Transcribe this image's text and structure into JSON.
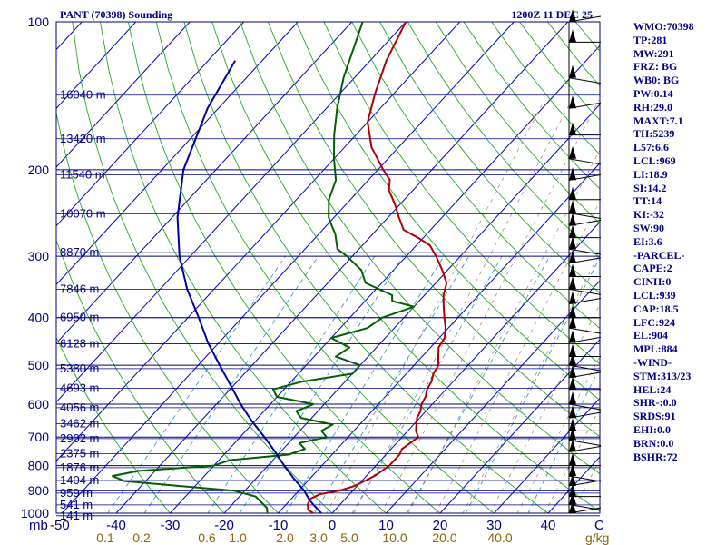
{
  "header": {
    "station": "PANT (70398) Sounding",
    "time": "1200Z 11 DEC 25"
  },
  "chart_data": {
    "type": "line",
    "title": "PANT (70398) Sounding",
    "subtitle": "1200Z 11 DEC 25",
    "xlabel": "",
    "ylabel": "",
    "xlim": [
      -50,
      50
    ],
    "ylim": [
      1000,
      100
    ],
    "y_scale": "log",
    "pressure_levels": [
      100,
      200,
      300,
      400,
      500,
      600,
      700,
      800,
      900,
      1000
    ],
    "pressure_labels": [
      "100",
      "200",
      "300",
      "400",
      "500",
      "600",
      "700",
      "800",
      "900",
      "1000"
    ],
    "temperature_ticks": [
      -40,
      -30,
      -20,
      -10,
      0,
      10,
      20,
      30,
      40
    ],
    "temperature_tick_labels": [
      "-40",
      "-30",
      "-20",
      "-10",
      "0",
      "10",
      "20",
      "30",
      "40"
    ],
    "corner_label": "mb",
    "left_edge_temp_label": "-50",
    "end_label": "C",
    "mixing_ratio_units": "g/kg",
    "mixing_ratio_labels": [
      {
        "text": "0.1",
        "value": 0.1
      },
      {
        "text": "0.2",
        "value": 0.2
      },
      {
        "text": "0.6",
        "value": 0.6
      },
      {
        "text": "1.0",
        "value": 1.0
      },
      {
        "text": "2.0",
        "value": 2.0
      },
      {
        "text": "3.0",
        "value": 3.0
      },
      {
        "text": "5.0",
        "value": 5.0
      },
      {
        "text": "10.0",
        "value": 10.0
      },
      {
        "text": "20.0",
        "value": 20.0
      },
      {
        "text": "40.0",
        "value": 40.0
      }
    ],
    "height_labels": [
      {
        "p": 141,
        "text": "16040 m"
      },
      {
        "p": 173,
        "text": "13420 m"
      },
      {
        "p": 205,
        "text": "11540 m"
      },
      {
        "p": 246,
        "text": "10070 m"
      },
      {
        "p": 295,
        "text": "8870 m"
      },
      {
        "p": 350,
        "text": "7846 m"
      },
      {
        "p": 400,
        "text": "6950 m"
      },
      {
        "p": 452,
        "text": "6128 m"
      },
      {
        "p": 508,
        "text": "5380 m"
      },
      {
        "p": 557,
        "text": "4693 m"
      },
      {
        "p": 610,
        "text": "4056 m"
      },
      {
        "p": 658,
        "text": "3462 m"
      },
      {
        "p": 705,
        "text": "2902 m"
      },
      {
        "p": 757,
        "text": "2375 m"
      },
      {
        "p": 808,
        "text": "1876 m"
      },
      {
        "p": 858,
        "text": "1404 m"
      },
      {
        "p": 910,
        "text": "959 m"
      },
      {
        "p": 962,
        "text": "541 m"
      },
      {
        "p": 1012,
        "text": "141 m"
      }
    ],
    "series": [
      {
        "name": "Temperature",
        "color": "#b00000",
        "points": [
          [
            1000,
            -3.5
          ],
          [
            985,
            -5.0
          ],
          [
            960,
            -6.0
          ],
          [
            935,
            -6.5
          ],
          [
            925,
            -6.0
          ],
          [
            915,
            -5.5
          ],
          [
            900,
            -2.5
          ],
          [
            880,
            -0.5
          ],
          [
            860,
            0.5
          ],
          [
            840,
            1.5
          ],
          [
            820,
            2.0
          ],
          [
            800,
            2.5
          ],
          [
            780,
            2.5
          ],
          [
            760,
            2.5
          ],
          [
            740,
            2.0
          ],
          [
            720,
            2.5
          ],
          [
            700,
            3.0
          ],
          [
            680,
            1.5
          ],
          [
            660,
            0.5
          ],
          [
            640,
            -0.5
          ],
          [
            620,
            -1.0
          ],
          [
            600,
            -2.0
          ],
          [
            580,
            -2.5
          ],
          [
            560,
            -3.5
          ],
          [
            540,
            -4.0
          ],
          [
            520,
            -5.0
          ],
          [
            500,
            -5.5
          ],
          [
            480,
            -7.0
          ],
          [
            460,
            -8.5
          ],
          [
            440,
            -9.0
          ],
          [
            420,
            -10.5
          ],
          [
            400,
            -12.5
          ],
          [
            380,
            -14.5
          ],
          [
            360,
            -16.5
          ],
          [
            340,
            -18.0
          ],
          [
            320,
            -21.0
          ],
          [
            300,
            -24.5
          ],
          [
            285,
            -27.5
          ],
          [
            275,
            -31.0
          ],
          [
            265,
            -35.0
          ],
          [
            250,
            -38.0
          ],
          [
            235,
            -41.0
          ],
          [
            220,
            -44.5
          ],
          [
            210,
            -46.0
          ],
          [
            200,
            -49.0
          ],
          [
            180,
            -55.0
          ],
          [
            160,
            -60.0
          ],
          [
            140,
            -63.5
          ],
          [
            120,
            -67.0
          ],
          [
            100,
            -70.0
          ]
        ]
      },
      {
        "name": "Dewpoint",
        "color": "#006000",
        "points": [
          [
            1000,
            -12.0
          ],
          [
            975,
            -13.0
          ],
          [
            950,
            -15.0
          ],
          [
            925,
            -17.0
          ],
          [
            900,
            -22.0
          ],
          [
            880,
            -33.0
          ],
          [
            860,
            -44.0
          ],
          [
            840,
            -47.0
          ],
          [
            820,
            -43.0
          ],
          [
            800,
            -30.0
          ],
          [
            780,
            -28.0
          ],
          [
            760,
            -18.0
          ],
          [
            740,
            -16.0
          ],
          [
            720,
            -18.0
          ],
          [
            700,
            -14.0
          ],
          [
            680,
            -16.0
          ],
          [
            660,
            -15.0
          ],
          [
            640,
            -22.0
          ],
          [
            620,
            -24.0
          ],
          [
            600,
            -22.0
          ],
          [
            580,
            -30.0
          ],
          [
            560,
            -32.0
          ],
          [
            540,
            -28.0
          ],
          [
            520,
            -20.0
          ],
          [
            500,
            -20.0
          ],
          [
            480,
            -26.0
          ],
          [
            460,
            -25.0
          ],
          [
            440,
            -30.0
          ],
          [
            420,
            -25.0
          ],
          [
            400,
            -24.0
          ],
          [
            380,
            -20.0
          ],
          [
            370,
            -25.0
          ],
          [
            360,
            -26.0
          ],
          [
            340,
            -33.0
          ],
          [
            320,
            -36.0
          ],
          [
            300,
            -41.0
          ],
          [
            290,
            -44.0
          ],
          [
            270,
            -47.0
          ],
          [
            260,
            -49.0
          ],
          [
            250,
            -51.0
          ],
          [
            230,
            -54.0
          ],
          [
            210,
            -56.0
          ],
          [
            190,
            -60.0
          ],
          [
            170,
            -64.0
          ],
          [
            150,
            -68.0
          ],
          [
            130,
            -72.0
          ],
          [
            100,
            -78.0
          ]
        ]
      },
      {
        "name": "Parcel",
        "color": "#0000a0",
        "points": [
          [
            1000,
            -2.0
          ],
          [
            960,
            -5.0
          ],
          [
            939,
            -6.5
          ],
          [
            900,
            -9.0
          ],
          [
            850,
            -13.0
          ],
          [
            800,
            -17.0
          ],
          [
            750,
            -21.0
          ],
          [
            700,
            -25.5
          ],
          [
            650,
            -30.5
          ],
          [
            600,
            -35.5
          ],
          [
            550,
            -40.5
          ],
          [
            500,
            -46.0
          ],
          [
            450,
            -52.0
          ],
          [
            400,
            -58.0
          ],
          [
            350,
            -65.0
          ],
          [
            300,
            -72.0
          ],
          [
            250,
            -79.0
          ],
          [
            200,
            -86.0
          ],
          [
            150,
            -92.0
          ],
          [
            120,
            -95.0
          ]
        ]
      }
    ],
    "wind_barbs_levels": [
      100,
      110,
      130,
      150,
      170,
      190,
      210,
      230,
      245,
      260,
      275,
      290,
      310,
      330,
      350,
      375,
      400,
      420,
      450,
      480,
      500,
      530,
      560,
      600,
      640,
      680,
      710,
      750,
      800,
      840,
      880,
      925,
      960,
      1000
    ],
    "grid": true,
    "legend": "none"
  },
  "indices": [
    "WMO:70398",
    "TP:281",
    "MW:291",
    "FRZ: BG",
    "WB0: BG",
    "PW:0.14",
    "RH:29.0",
    "MAXT:7.1",
    "TH:5239",
    "L57:6.6",
    "LCL:969",
    "LI:18.9",
    "SI:14.2",
    "TT:14",
    "KI:-32",
    "SW:90",
    "EI:3.6",
    "-PARCEL-",
    "CAPE:2",
    "CINH:0",
    "LCL:939",
    "CAP:18.5",
    "LFC:924",
    "EL:904",
    "MPL:884",
    "-WIND-",
    "STM:313/23",
    "HEL:24",
    "SHR-:0.0",
    "SRDS:91",
    "EHI:0.0",
    "BRN:0.0",
    "BSHR:72"
  ]
}
